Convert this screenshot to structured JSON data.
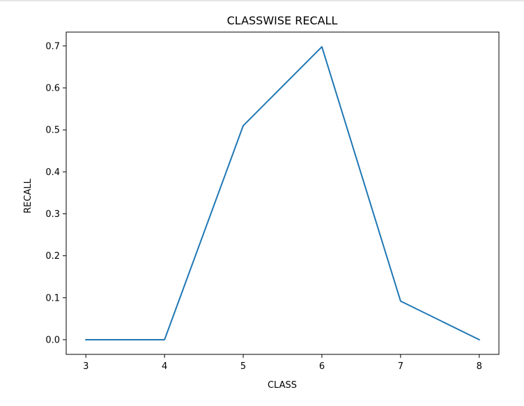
{
  "chart_data": {
    "type": "line",
    "title": "CLASSWISE RECALL",
    "xlabel": "CLASS",
    "ylabel": "RECALL",
    "x": [
      3,
      4,
      5,
      6,
      7,
      8
    ],
    "series": [
      {
        "values": [
          0.0,
          0.0,
          0.51,
          0.698,
          0.092,
          0.0
        ],
        "color": "#1f77b4"
      }
    ],
    "xticks": [
      "3",
      "4",
      "5",
      "6",
      "7",
      "8"
    ],
    "yticks": [
      "0.0",
      "0.1",
      "0.2",
      "0.3",
      "0.4",
      "0.5",
      "0.6",
      "0.7"
    ],
    "xlim": [
      2.75,
      8.25
    ],
    "ylim": [
      -0.035,
      0.733
    ],
    "grid": false,
    "legend": "none"
  }
}
